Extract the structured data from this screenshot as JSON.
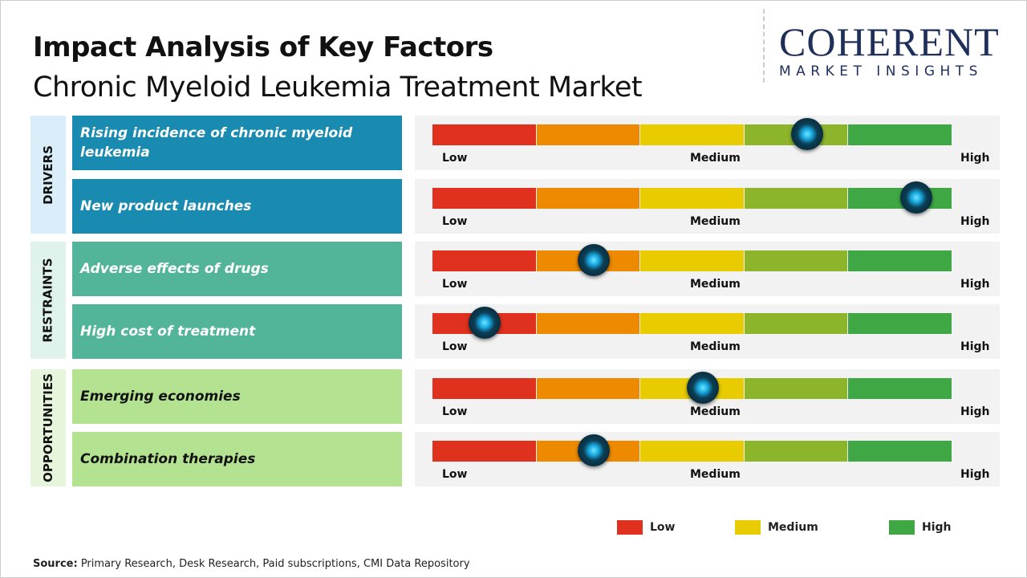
{
  "header": {
    "title": "Impact Analysis of Key Factors",
    "subtitle": "Chronic Myeloid Leukemia Treatment Market"
  },
  "logo": {
    "line1": "COHERENT",
    "line2": "MARKET INSIGHTS"
  },
  "scale_labels": {
    "low": "Low",
    "medium": "Medium",
    "high": "High"
  },
  "segment_colors": [
    "#e0301e",
    "#ee8a00",
    "#e8cc00",
    "#8db52b",
    "#3fa845"
  ],
  "chart_data": {
    "type": "gauge-table",
    "categories": [
      {
        "name": "DRIVERS",
        "color": "#1a8bb0",
        "bg": "#d9eef8",
        "factors": [
          {
            "label": "Rising incidence of chronic myeloid leukemia",
            "impact": 0.72
          },
          {
            "label": "New product launches",
            "impact": 0.93
          }
        ]
      },
      {
        "name": "RESTRAINTS",
        "color": "#52b59a",
        "bg": "#dff2ec",
        "factors": [
          {
            "label": "Adverse effects of drugs",
            "impact": 0.31
          },
          {
            "label": "High cost of treatment",
            "impact": 0.1
          }
        ]
      },
      {
        "name": "OPPORTUNITIES",
        "color": "#b3e290",
        "bg": "#e6f5dc",
        "text_color": "#111",
        "factors": [
          {
            "label": "Emerging economies",
            "impact": 0.52
          },
          {
            "label": "Combination therapies",
            "impact": 0.31
          }
        ]
      }
    ],
    "legend": [
      {
        "label": "Low",
        "color": "#e0301e"
      },
      {
        "label": "Medium",
        "color": "#e8cc00"
      },
      {
        "label": "High",
        "color": "#3fa845"
      }
    ]
  },
  "source": {
    "label": "Source:",
    "text": " Primary Research, Desk Research, Paid subscriptions, CMI Data Repository"
  }
}
